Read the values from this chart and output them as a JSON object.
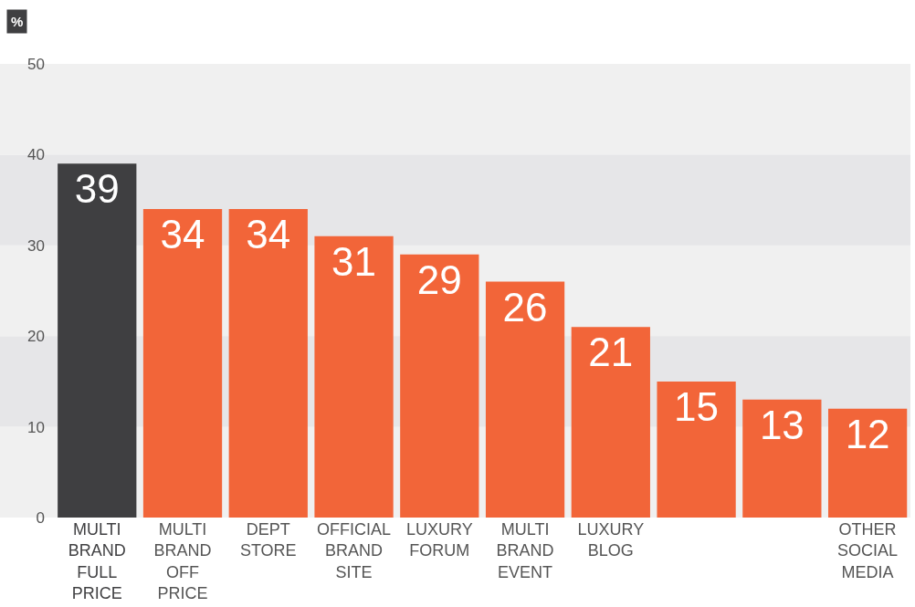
{
  "chart_data": {
    "type": "bar",
    "ylabel": "%",
    "categories": [
      "MULTI BRAND FULL PRICE",
      "MULTI BRAND OFF PRICE",
      "DEPT STORE",
      "OFFICIAL BRAND SITE",
      "LUXURY FORUM",
      "MULTI BRAND EVENT",
      "LUXURY BLOG",
      null,
      null,
      "OTHER SOCIAL MEDIA"
    ],
    "values": [
      39,
      34,
      34,
      31,
      29,
      26,
      21,
      15,
      13,
      12
    ],
    "colors": [
      "#3f3f41",
      "#f26539",
      "#f26539",
      "#f26539",
      "#f26539",
      "#f26539",
      "#f26539",
      "#f26539",
      "#f26539",
      "#f26539"
    ],
    "ylim": [
      0,
      50
    ],
    "yticks": [
      0,
      10,
      20,
      30,
      40,
      50
    ],
    "data_labels": true
  }
}
